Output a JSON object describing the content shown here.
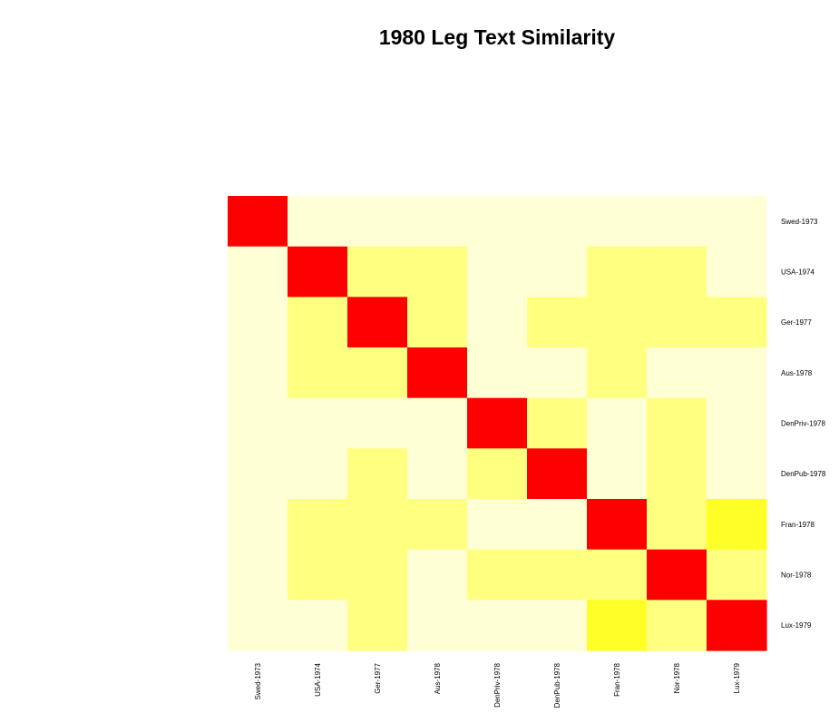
{
  "chart_data": {
    "type": "heatmap",
    "title": "1980 Leg Text Similarity",
    "xlabel": "",
    "ylabel": "",
    "columns": [
      "Swed-1973",
      "USA-1974",
      "Ger-1977",
      "Aus-1978",
      "DenPriv-1978",
      "DenPub-1978",
      "Fran-1978",
      "Nor-1978",
      "Lux-1979"
    ],
    "rows": [
      "Swed-1973",
      "USA-1974",
      "Ger-1977",
      "Aus-1978",
      "DenPriv-1978",
      "DenPub-1978",
      "Fran-1978",
      "Nor-1978",
      "Lux-1979"
    ],
    "levels": [
      [
        3,
        0,
        0,
        0,
        0,
        0,
        0,
        0,
        0
      ],
      [
        0,
        3,
        1,
        1,
        0,
        0,
        1,
        1,
        0
      ],
      [
        0,
        1,
        3,
        1,
        0,
        1,
        1,
        1,
        1
      ],
      [
        0,
        1,
        1,
        3,
        0,
        0,
        1,
        0,
        0
      ],
      [
        0,
        0,
        0,
        0,
        3,
        1,
        0,
        1,
        0
      ],
      [
        0,
        0,
        1,
        0,
        1,
        3,
        0,
        1,
        0
      ],
      [
        0,
        1,
        1,
        1,
        0,
        0,
        3,
        1,
        2
      ],
      [
        0,
        1,
        1,
        0,
        1,
        1,
        1,
        3,
        1
      ],
      [
        0,
        0,
        1,
        0,
        0,
        0,
        2,
        1,
        3
      ]
    ],
    "palette": [
      "#FFFFD6",
      "#FFFF80",
      "#FFFF28",
      "#FF0000"
    ],
    "legend": "none",
    "grid": false
  }
}
